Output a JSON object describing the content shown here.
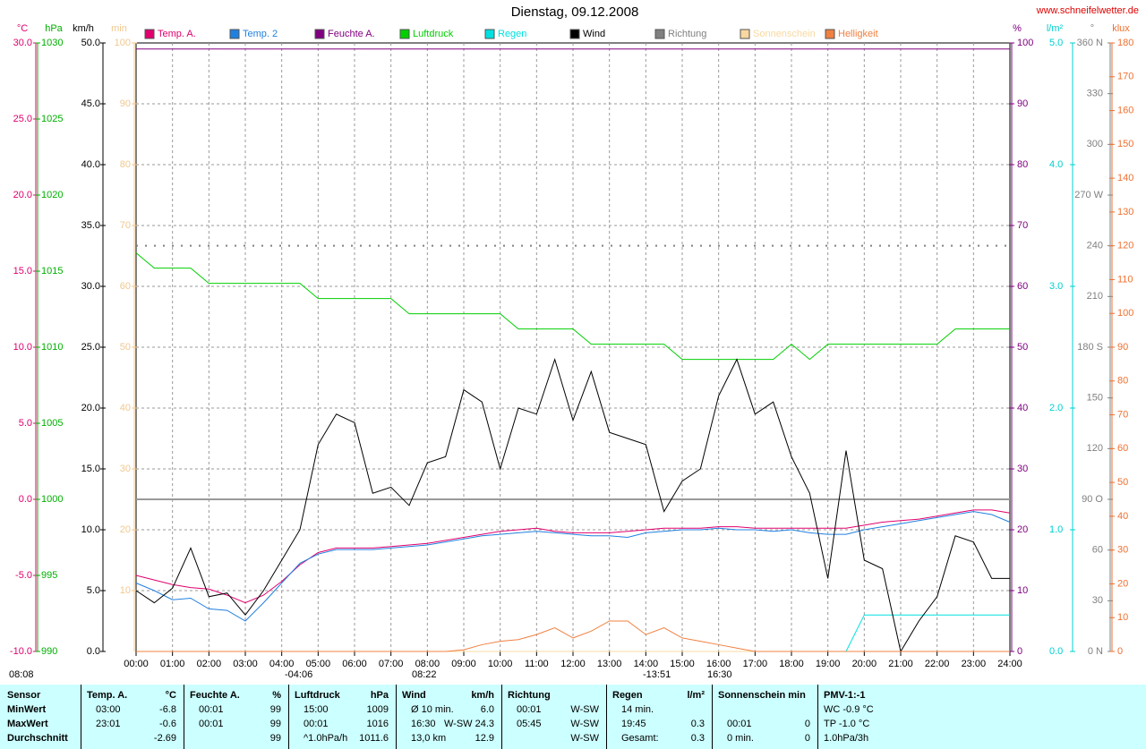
{
  "chart_data": {
    "type": "line",
    "title": "Dienstag, 09.12.2008",
    "source": "www.schneifelwetter.de",
    "x": [
      0,
      0.5,
      1,
      1.5,
      2,
      2.5,
      3,
      3.5,
      4,
      4.5,
      5,
      5.5,
      6,
      6.5,
      7,
      7.5,
      8,
      8.5,
      9,
      9.5,
      10,
      10.5,
      11,
      11.5,
      12,
      12.5,
      13,
      13.5,
      14,
      14.5,
      15,
      15.5,
      16,
      16.5,
      17,
      17.5,
      18,
      18.5,
      19,
      19.5,
      20,
      20.5,
      21,
      21.5,
      22,
      22.5,
      23,
      23.5,
      24
    ],
    "xlim": [
      0,
      24
    ],
    "xticks": [
      {
        "value": 0,
        "label": "00:00"
      },
      {
        "value": 1,
        "label": "01:00"
      },
      {
        "value": 2,
        "label": "02:00"
      },
      {
        "value": 3,
        "label": "03:00"
      },
      {
        "value": 4,
        "label": "04:00"
      },
      {
        "value": 5,
        "label": "05:00"
      },
      {
        "value": 6,
        "label": "06:00"
      },
      {
        "value": 7,
        "label": "07:00"
      },
      {
        "value": 8,
        "label": "08:00"
      },
      {
        "value": 9,
        "label": "09:00"
      },
      {
        "value": 10,
        "label": "10:00"
      },
      {
        "value": 11,
        "label": "11:00"
      },
      {
        "value": 12,
        "label": "12:00"
      },
      {
        "value": 13,
        "label": "13:00"
      },
      {
        "value": 14,
        "label": "14:00"
      },
      {
        "value": 15,
        "label": "15:00"
      },
      {
        "value": 16,
        "label": "16:00"
      },
      {
        "value": 17,
        "label": "17:00"
      },
      {
        "value": 18,
        "label": "18:00"
      },
      {
        "value": 19,
        "label": "19:00"
      },
      {
        "value": 20,
        "label": "20:00"
      },
      {
        "value": 21,
        "label": "21:00"
      },
      {
        "value": 22,
        "label": "22:00"
      },
      {
        "value": 23,
        "label": "23:00"
      },
      {
        "value": 24,
        "label": "24:00"
      }
    ],
    "grid": true,
    "axes": [
      {
        "unit": "°C",
        "color": "#e0006e",
        "lim": [
          -10,
          30
        ],
        "ticks": [
          {
            "value": -10,
            "label": "-10.0"
          },
          {
            "value": -5,
            "label": "-5.0"
          },
          {
            "value": 0,
            "label": "0.0"
          },
          {
            "value": 5,
            "label": "5.0"
          },
          {
            "value": 10,
            "label": "10.0"
          },
          {
            "value": 15,
            "label": "15.0"
          },
          {
            "value": 20,
            "label": "20.0"
          },
          {
            "value": 25,
            "label": "25.0"
          },
          {
            "value": 30,
            "label": "30.0"
          }
        ]
      },
      {
        "unit": "hPa",
        "color": "#00b000",
        "lim": [
          990,
          1030
        ],
        "ticks": [
          990,
          995,
          1000,
          1005,
          1010,
          1015,
          1020,
          1025,
          1030
        ]
      },
      {
        "unit": "km/h",
        "color": "#000000",
        "lim": [
          0,
          50
        ],
        "ticks": [
          {
            "value": 0,
            "label": "0.0"
          },
          {
            "value": 5,
            "label": "5.0"
          },
          {
            "value": 10,
            "label": "10.0"
          },
          {
            "value": 15,
            "label": "15.0"
          },
          {
            "value": 20,
            "label": "20.0"
          },
          {
            "value": 25,
            "label": "25.0"
          },
          {
            "value": 30,
            "label": "30.0"
          },
          {
            "value": 35,
            "label": "35.0"
          },
          {
            "value": 40,
            "label": "40.0"
          },
          {
            "value": 45,
            "label": "45.0"
          },
          {
            "value": 50,
            "label": "50.0"
          }
        ]
      },
      {
        "unit": "min",
        "color": "#f0c890",
        "lim": [
          0,
          100
        ],
        "ticks": [
          10,
          20,
          30,
          40,
          50,
          60,
          70,
          80,
          90,
          100
        ]
      },
      {
        "unit": "%",
        "color": "#800080",
        "lim": [
          0,
          100
        ],
        "ticks": [
          0,
          10,
          20,
          30,
          40,
          50,
          60,
          70,
          80,
          90,
          100
        ]
      },
      {
        "unit": "l/m²",
        "color": "#00d0d0",
        "lim": [
          0,
          5
        ],
        "ticks": [
          {
            "value": 0,
            "label": "0.0"
          },
          {
            "value": 1,
            "label": "1.0"
          },
          {
            "value": 2,
            "label": "2.0"
          },
          {
            "value": 3,
            "label": "3.0"
          },
          {
            "value": 4,
            "label": "4.0"
          },
          {
            "value": 5,
            "label": "5.0"
          }
        ]
      },
      {
        "unit": "°",
        "color": "#808080",
        "lim": [
          0,
          360
        ],
        "ticks": [
          {
            "value": 0,
            "label": "0   N"
          },
          30,
          60,
          {
            "value": 90,
            "label": "90   O"
          },
          120,
          150,
          {
            "value": 180,
            "label": "180 S"
          },
          210,
          240,
          {
            "value": 270,
            "label": "270 W"
          },
          300,
          330,
          {
            "value": 360,
            "label": "360 N"
          }
        ]
      },
      {
        "unit": "klux",
        "color": "#f07030",
        "lim": [
          0,
          180
        ],
        "ticks": [
          0,
          10,
          20,
          30,
          40,
          50,
          60,
          70,
          80,
          90,
          100,
          110,
          120,
          130,
          140,
          150,
          160,
          170,
          180
        ]
      }
    ],
    "series": [
      {
        "name": "Temp. A.",
        "color": "#e0006e",
        "axis": "°C",
        "values": [
          -5.0,
          -5.3,
          -5.6,
          -5.8,
          -5.9,
          -6.3,
          -6.8,
          -6.3,
          -5.4,
          -4.3,
          -3.5,
          -3.2,
          -3.2,
          -3.2,
          -3.1,
          -3.0,
          -2.9,
          -2.7,
          -2.5,
          -2.3,
          -2.1,
          -2.0,
          -1.9,
          -2.1,
          -2.2,
          -2.2,
          -2.2,
          -2.1,
          -2.0,
          -1.9,
          -1.9,
          -1.9,
          -1.8,
          -1.8,
          -1.9,
          -1.9,
          -1.9,
          -1.9,
          -1.9,
          -1.9,
          -1.7,
          -1.5,
          -1.4,
          -1.3,
          -1.1,
          -0.9,
          -0.7,
          -0.7,
          -0.9
        ]
      },
      {
        "name": "Temp. 2",
        "color": "#2080e0",
        "axis": "°C",
        "values": [
          -5.5,
          -6.0,
          -6.6,
          -6.5,
          -7.2,
          -7.3,
          -8.0,
          -6.8,
          -5.5,
          -4.2,
          -3.6,
          -3.3,
          -3.3,
          -3.3,
          -3.2,
          -3.1,
          -3.0,
          -2.8,
          -2.6,
          -2.4,
          -2.3,
          -2.2,
          -2.1,
          -2.2,
          -2.3,
          -2.4,
          -2.4,
          -2.5,
          -2.2,
          -2.1,
          -2.0,
          -2.0,
          -1.9,
          -2.0,
          -2.0,
          -2.1,
          -2.0,
          -2.2,
          -2.3,
          -2.3,
          -2.0,
          -1.8,
          -1.6,
          -1.4,
          -1.2,
          -1.0,
          -0.8,
          -1.0,
          -1.5
        ]
      },
      {
        "name": "Feuchte A.",
        "color": "#800080",
        "axis": "%",
        "values": [
          99,
          99,
          99,
          99,
          99,
          99,
          99,
          99,
          99,
          99,
          99,
          99,
          99,
          99,
          99,
          99,
          99,
          99,
          99,
          99,
          99,
          99,
          99,
          99,
          99,
          99,
          99,
          99,
          99,
          99,
          99,
          99,
          99,
          99,
          99,
          99,
          99,
          99,
          99,
          99,
          99,
          99,
          99,
          99,
          99,
          99,
          99,
          99,
          99
        ]
      },
      {
        "name": "Luftdruck",
        "color": "#00d000",
        "axis": "hPa",
        "values": [
          1016.2,
          1015.2,
          1015.2,
          1015.2,
          1014.2,
          1014.2,
          1014.2,
          1014.2,
          1014.2,
          1014.2,
          1013.2,
          1013.2,
          1013.2,
          1013.2,
          1013.2,
          1012.2,
          1012.2,
          1012.2,
          1012.2,
          1012.2,
          1012.2,
          1011.2,
          1011.2,
          1011.2,
          1011.2,
          1010.2,
          1010.2,
          1010.2,
          1010.2,
          1010.2,
          1009.2,
          1009.2,
          1009.2,
          1009.2,
          1009.2,
          1009.2,
          1010.2,
          1009.2,
          1010.2,
          1010.2,
          1010.2,
          1010.2,
          1010.2,
          1010.2,
          1010.2,
          1011.2,
          1011.2,
          1011.2,
          1011.2
        ]
      },
      {
        "name": "Regen",
        "color": "#00e0e0",
        "axis": "l/m²",
        "values": [
          0,
          0,
          0,
          0,
          0,
          0,
          0,
          0,
          0,
          0,
          0,
          0,
          0,
          0,
          0,
          0,
          0,
          0,
          0,
          0,
          0,
          0,
          0,
          0,
          0,
          0,
          0,
          0,
          0,
          0,
          0,
          0,
          0,
          0,
          0,
          0,
          0,
          0,
          0,
          0,
          0.3,
          0.3,
          0.3,
          0.3,
          0.3,
          0.3,
          0.3,
          0.3,
          0.3
        ]
      },
      {
        "name": "Wind",
        "color": "#000000",
        "axis": "km/h",
        "values": [
          5.0,
          4.0,
          5.2,
          8.5,
          4.5,
          4.8,
          3.0,
          5.0,
          7.5,
          10.0,
          17.0,
          19.5,
          18.8,
          13.0,
          13.5,
          12.0,
          15.5,
          16.0,
          21.5,
          20.5,
          15.0,
          20.0,
          19.5,
          24.0,
          19.0,
          23.0,
          18.0,
          17.5,
          17.0,
          11.5,
          14.0,
          15.0,
          21.0,
          24.0,
          19.5,
          20.5,
          16.0,
          13.0,
          6.0,
          16.5,
          7.5,
          6.8,
          0.0,
          2.5,
          4.5,
          9.5,
          9.0,
          6.0,
          6.0
        ]
      },
      {
        "name": "Richtung",
        "color": "#808080",
        "axis": "°",
        "dashed": true,
        "values": [
          240,
          240,
          240,
          240,
          240,
          240,
          240,
          240,
          240,
          240,
          240,
          240,
          240,
          240,
          240,
          240,
          240,
          240,
          240,
          240,
          240,
          240,
          240,
          240,
          240,
          240,
          240,
          240,
          240,
          240,
          240,
          240,
          240,
          240,
          240,
          240,
          240,
          240,
          240,
          240,
          240,
          240,
          240,
          240,
          240,
          240,
          240,
          240,
          240
        ]
      },
      {
        "name": "Sonnenschein",
        "color": "#f8d8a0",
        "axis": "min",
        "values": [
          0,
          0,
          0,
          0,
          0,
          0,
          0,
          0,
          0,
          0,
          0,
          0,
          0,
          0,
          0,
          0,
          0,
          0,
          0,
          0,
          0,
          0,
          0,
          0,
          0,
          0,
          0,
          0,
          0,
          0,
          0,
          0,
          0,
          0,
          0,
          0,
          0,
          0,
          0,
          0,
          0,
          0,
          0,
          0,
          0,
          0,
          0,
          0,
          0
        ]
      },
      {
        "name": "Helligkeit",
        "color": "#f08040",
        "axis": "klux",
        "values": [
          0,
          0,
          0,
          0,
          0,
          0,
          0,
          0,
          0,
          0,
          0,
          0,
          0,
          0,
          0,
          0,
          0,
          0,
          0.5,
          2,
          3,
          3.5,
          5,
          7,
          4,
          6,
          9,
          9,
          5,
          7,
          4,
          3,
          2,
          1,
          0,
          0,
          0,
          0,
          0,
          0,
          0,
          0,
          0,
          0,
          0,
          0,
          0,
          0,
          0
        ]
      }
    ],
    "annotations": [
      "08:08",
      "-04:06",
      "08:22",
      "-13:51",
      "16:30"
    ]
  },
  "table": {
    "row_labels": [
      "Sensor",
      "MinWert",
      "MaxWert",
      "Durchschnitt"
    ],
    "sections": [
      {
        "header": [
          "Temp. A.",
          "°C"
        ],
        "rows": [
          [
            "03:00",
            "-6.8"
          ],
          [
            "23:01",
            "-0.6"
          ],
          [
            null,
            "-2.69"
          ]
        ]
      },
      {
        "header": [
          "Feuchte A.",
          "%"
        ],
        "rows": [
          [
            "00:01",
            "99"
          ],
          [
            "00:01",
            "99"
          ],
          [
            null,
            "99"
          ]
        ]
      },
      {
        "header": [
          "Luftdruck",
          "hPa"
        ],
        "rows": [
          [
            "15:00",
            "1009"
          ],
          [
            "00:01",
            "1016"
          ],
          [
            "^1.0hPa/h",
            "1011.6"
          ]
        ]
      },
      {
        "header": [
          "Wind",
          "km/h"
        ],
        "rows": [
          [
            "Ø 10 min.",
            "6.0"
          ],
          [
            "16:30",
            "W-SW 24.3"
          ],
          [
            "13,0 km",
            "12.9"
          ]
        ]
      },
      {
        "header": [
          "Richtung",
          null
        ],
        "rows": [
          [
            "00:01",
            "W-SW"
          ],
          [
            "05:45",
            "W-SW"
          ],
          [
            null,
            "W-SW"
          ]
        ]
      },
      {
        "header": [
          "Regen",
          "l/m²"
        ],
        "rows": [
          [
            "14 min.",
            null
          ],
          [
            "19:45",
            "0.3"
          ],
          [
            "Gesamt:",
            "0.3"
          ]
        ]
      },
      {
        "header": [
          "Sonnenschein min",
          null
        ],
        "rows": [
          [
            null,
            null
          ],
          [
            "00:01",
            "0"
          ],
          [
            "0 min.",
            "0"
          ]
        ]
      },
      {
        "header": [
          "PMV-1:-1",
          null
        ],
        "rows": [
          [
            "WC -0.9 °C",
            null
          ],
          [
            "TP -1.0 °C",
            null
          ],
          [
            "1.0hPa/3h",
            null
          ]
        ]
      }
    ]
  }
}
